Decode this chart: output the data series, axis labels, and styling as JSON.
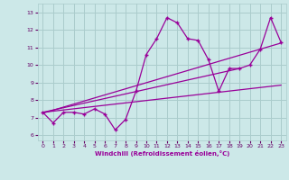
{
  "xlabel": "Windchill (Refroidissement éolien,°C)",
  "bg_color": "#cce8e8",
  "line_color": "#990099",
  "grid_color": "#aacccc",
  "xlim": [
    -0.5,
    23.5
  ],
  "ylim": [
    5.7,
    13.5
  ],
  "xticks": [
    0,
    1,
    2,
    3,
    4,
    5,
    6,
    7,
    8,
    9,
    10,
    11,
    12,
    13,
    14,
    15,
    16,
    17,
    18,
    19,
    20,
    21,
    22,
    23
  ],
  "yticks": [
    6,
    7,
    8,
    9,
    10,
    11,
    12,
    13
  ],
  "series1_x": [
    0,
    1,
    2,
    3,
    4,
    5,
    6,
    7,
    8,
    9,
    10,
    11,
    12,
    13,
    14,
    15,
    16,
    17,
    18,
    19,
    20,
    21,
    22,
    23
  ],
  "series1_y": [
    7.3,
    6.7,
    7.3,
    7.3,
    7.2,
    7.5,
    7.2,
    6.3,
    6.9,
    8.5,
    10.6,
    11.5,
    12.7,
    12.4,
    11.5,
    11.4,
    10.3,
    8.5,
    9.8,
    9.8,
    10.0,
    10.9,
    12.7,
    11.3
  ],
  "trend1_x": [
    0,
    23
  ],
  "trend1_y": [
    7.3,
    8.85
  ],
  "trend2_x": [
    0,
    23
  ],
  "trend2_y": [
    7.25,
    11.25
  ],
  "trend3_x": [
    0,
    19
  ],
  "trend3_y": [
    7.3,
    9.8
  ]
}
